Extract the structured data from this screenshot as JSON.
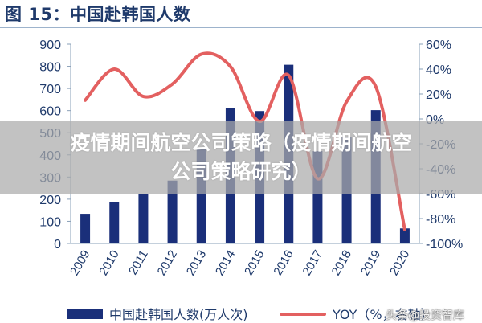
{
  "figure_title": "图 15：中国赴韩国人数",
  "overlay_text": "疫情期间航空公司策略（疫情期间航空公司策略研究）",
  "watermark_text": "头条@投资智库",
  "colors": {
    "bar": "#1a2f7a",
    "line": "#e36060",
    "axis": "#8aa0b8",
    "tick_text": "#1f3a6b",
    "title": "#1f3a6b"
  },
  "chart_data": {
    "type": "bar",
    "categories": [
      "2009",
      "2010",
      "2011",
      "2012",
      "2013",
      "2014",
      "2015",
      "2016",
      "2017",
      "2018",
      "2019",
      "2020"
    ],
    "series": [
      {
        "name": "中国赴韩国人数(万人次)",
        "type": "bar",
        "axis": "left",
        "values": [
          134,
          188,
          222,
          284,
          433,
          613,
          598,
          807,
          417,
          479,
          602,
          68
        ]
      },
      {
        "name": "YOY（%，右轴）",
        "type": "line",
        "axis": "right",
        "values": [
          15,
          40,
          18,
          28,
          52,
          42,
          -2,
          35,
          -48,
          14,
          26,
          -89
        ]
      }
    ],
    "y_left": {
      "min": 0,
      "max": 900,
      "ticks": [
        0,
        100,
        200,
        300,
        400,
        500,
        600,
        700,
        800,
        900
      ]
    },
    "y_right": {
      "min": -100,
      "max": 60,
      "ticks": [
        "-100%",
        "-80%",
        "-60%",
        "-40%",
        "-20%",
        "0%",
        "20%",
        "40%",
        "60%"
      ]
    },
    "legend_position": "bottom",
    "grid": false
  }
}
